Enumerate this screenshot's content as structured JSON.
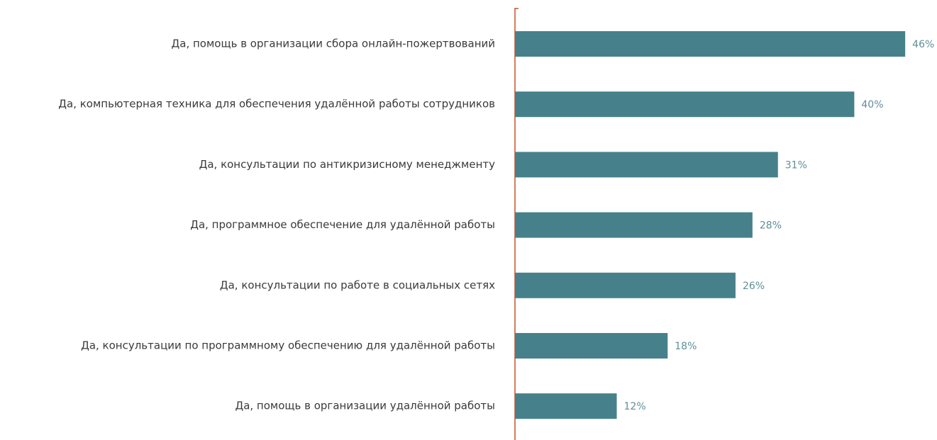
{
  "chart_data": {
    "type": "barh",
    "categories": [
      "Да, помощь в организации сбора онлайн-пожертвований",
      "Да, компьютерная техника для обеспечения удалённой работы сотрудников",
      "Да, консультации по антикризисному менеджменту",
      "Да, программное обеспечение для удалённой работы",
      "Да, консультации по работе в социальных сетях",
      "Да, консультации по программному обеспечению для удалённой работы",
      "Да, помощь в организации удалённой работы"
    ],
    "values": [
      46,
      40,
      31,
      28,
      26,
      18,
      12
    ],
    "value_labels": [
      "46%",
      "40%",
      "31%",
      "28%",
      "26%",
      "18%",
      "12%"
    ],
    "color": "#46818b",
    "xlim": [
      0,
      50
    ]
  }
}
